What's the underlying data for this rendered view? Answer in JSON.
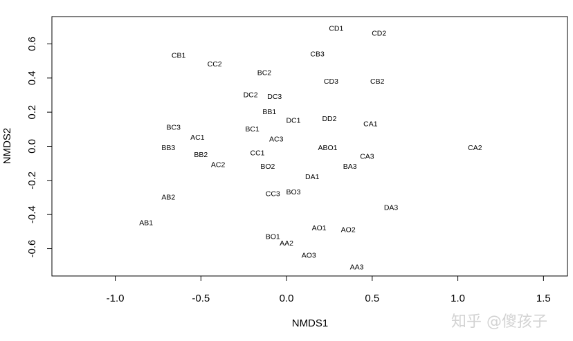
{
  "chart_data": {
    "type": "scatter",
    "title": "",
    "xlabel": "NMDS1",
    "ylabel": "NMDS2",
    "xlim": [
      -1.37,
      1.64
    ],
    "ylim": [
      -0.76,
      0.76
    ],
    "x_ticks": [
      -1.0,
      -0.5,
      0.0,
      0.5,
      1.0,
      1.5
    ],
    "x_tick_labels": [
      "-1.0",
      "-0.5",
      "0.0",
      "0.5",
      "1.0",
      "1.5"
    ],
    "y_ticks": [
      -0.6,
      -0.4,
      -0.2,
      0.0,
      0.2,
      0.4,
      0.6
    ],
    "y_tick_labels": [
      "-0.6",
      "-0.4",
      "-0.2",
      "0.0",
      "0.2",
      "0.4",
      "0.6"
    ],
    "grid": false,
    "points": [
      {
        "label": "CD1",
        "x": 0.29,
        "y": 0.69
      },
      {
        "label": "CD2",
        "x": 0.54,
        "y": 0.66
      },
      {
        "label": "CB3",
        "x": 0.18,
        "y": 0.54
      },
      {
        "label": "CB1",
        "x": -0.63,
        "y": 0.53
      },
      {
        "label": "CC2",
        "x": -0.42,
        "y": 0.48
      },
      {
        "label": "BC2",
        "x": -0.13,
        "y": 0.43
      },
      {
        "label": "CD3",
        "x": 0.26,
        "y": 0.38
      },
      {
        "label": "CB2",
        "x": 0.53,
        "y": 0.38
      },
      {
        "label": "DC2",
        "x": -0.21,
        "y": 0.3
      },
      {
        "label": "DC3",
        "x": -0.07,
        "y": 0.29
      },
      {
        "label": "BB1",
        "x": -0.1,
        "y": 0.2
      },
      {
        "label": "DC1",
        "x": 0.04,
        "y": 0.15
      },
      {
        "label": "DD2",
        "x": 0.25,
        "y": 0.16
      },
      {
        "label": "CA1",
        "x": 0.49,
        "y": 0.13
      },
      {
        "label": "BC3",
        "x": -0.66,
        "y": 0.11
      },
      {
        "label": "BC1",
        "x": -0.2,
        "y": 0.1
      },
      {
        "label": "AC1",
        "x": -0.52,
        "y": 0.05
      },
      {
        "label": "AC3",
        "x": -0.06,
        "y": 0.04
      },
      {
        "label": "BB3",
        "x": -0.69,
        "y": -0.01
      },
      {
        "label": "ABO1",
        "x": 0.24,
        "y": -0.01
      },
      {
        "label": "CA2",
        "x": 1.1,
        "y": -0.01
      },
      {
        "label": "BB2",
        "x": -0.5,
        "y": -0.05
      },
      {
        "label": "CC1",
        "x": -0.17,
        "y": -0.04
      },
      {
        "label": "CA3",
        "x": 0.47,
        "y": -0.06
      },
      {
        "label": "AC2",
        "x": -0.4,
        "y": -0.11
      },
      {
        "label": "BO2",
        "x": -0.11,
        "y": -0.12
      },
      {
        "label": "BA3",
        "x": 0.37,
        "y": -0.12
      },
      {
        "label": "DA1",
        "x": 0.15,
        "y": -0.18
      },
      {
        "label": "CC3",
        "x": -0.08,
        "y": -0.28
      },
      {
        "label": "BO3",
        "x": 0.04,
        "y": -0.27
      },
      {
        "label": "AB2",
        "x": -0.69,
        "y": -0.3
      },
      {
        "label": "DA3",
        "x": 0.61,
        "y": -0.36
      },
      {
        "label": "AB1",
        "x": -0.82,
        "y": -0.45
      },
      {
        "label": "AO1",
        "x": 0.19,
        "y": -0.48
      },
      {
        "label": "AO2",
        "x": 0.36,
        "y": -0.49
      },
      {
        "label": "BO1",
        "x": -0.08,
        "y": -0.53
      },
      {
        "label": "AA2",
        "x": 0.0,
        "y": -0.57
      },
      {
        "label": "AO3",
        "x": 0.13,
        "y": -0.64
      },
      {
        "label": "AA3",
        "x": 0.41,
        "y": -0.71
      }
    ]
  },
  "watermark": "知乎 @傻孩子"
}
